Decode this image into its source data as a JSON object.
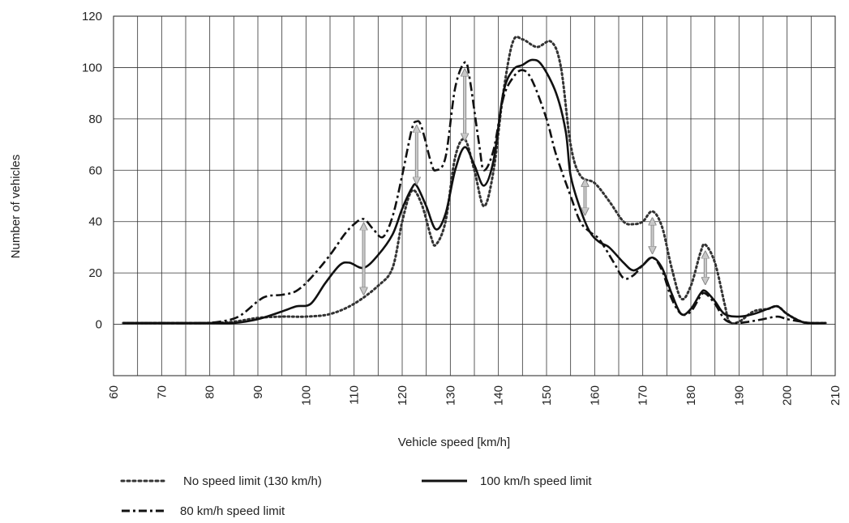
{
  "chart_data": {
    "type": "line",
    "xlabel": "Vehicle speed [km/h]",
    "ylabel": "Number of vehicles",
    "xlim": [
      60,
      210
    ],
    "ylim": [
      -20,
      120
    ],
    "x_ticks": [
      60,
      70,
      80,
      90,
      100,
      110,
      120,
      130,
      140,
      150,
      160,
      170,
      180,
      190,
      200,
      210
    ],
    "y_ticks": [
      0,
      20,
      40,
      60,
      80,
      100,
      120
    ],
    "grid": true,
    "legend_position": "bottom",
    "series": [
      {
        "name": "No speed limit (130 km/h)",
        "style": "dotted",
        "color": "#333333",
        "points": [
          [
            62,
            0.5
          ],
          [
            70,
            0.5
          ],
          [
            80,
            0.5
          ],
          [
            85,
            1
          ],
          [
            90,
            2.5
          ],
          [
            95,
            3
          ],
          [
            100,
            3
          ],
          [
            105,
            4
          ],
          [
            110,
            8
          ],
          [
            115,
            15
          ],
          [
            118,
            22
          ],
          [
            120,
            40
          ],
          [
            122,
            52
          ],
          [
            124,
            47
          ],
          [
            126,
            34
          ],
          [
            127,
            31
          ],
          [
            129,
            40
          ],
          [
            131,
            65
          ],
          [
            133,
            72
          ],
          [
            135,
            60
          ],
          [
            137,
            46
          ],
          [
            139,
            60
          ],
          [
            141,
            90
          ],
          [
            143,
            110
          ],
          [
            145,
            111
          ],
          [
            148,
            108
          ],
          [
            151,
            110
          ],
          [
            153,
            100
          ],
          [
            155,
            70
          ],
          [
            157,
            58
          ],
          [
            160,
            55
          ],
          [
            163,
            48
          ],
          [
            166,
            40
          ],
          [
            168,
            39
          ],
          [
            170,
            40
          ],
          [
            172,
            44
          ],
          [
            174,
            38
          ],
          [
            176,
            22
          ],
          [
            178,
            10
          ],
          [
            180,
            15
          ],
          [
            182,
            28
          ],
          [
            183,
            31
          ],
          [
            185,
            24
          ],
          [
            187,
            8
          ],
          [
            188,
            1
          ],
          [
            190,
            1
          ],
          [
            193,
            5
          ],
          [
            196,
            6
          ],
          [
            198,
            7
          ],
          [
            200,
            4
          ],
          [
            203,
            1
          ],
          [
            205,
            0.5
          ],
          [
            208,
            0.5
          ]
        ]
      },
      {
        "name": "100 km/h speed limit",
        "style": "solid",
        "color": "#111111",
        "points": [
          [
            62,
            0.5
          ],
          [
            70,
            0.5
          ],
          [
            80,
            0.5
          ],
          [
            85,
            0.5
          ],
          [
            90,
            2
          ],
          [
            95,
            5
          ],
          [
            98,
            7
          ],
          [
            101,
            8
          ],
          [
            104,
            16
          ],
          [
            107,
            23
          ],
          [
            109,
            24
          ],
          [
            112,
            22
          ],
          [
            115,
            27
          ],
          [
            118,
            35
          ],
          [
            120,
            45
          ],
          [
            122,
            53
          ],
          [
            123,
            54
          ],
          [
            125,
            46
          ],
          [
            127,
            37
          ],
          [
            129,
            43
          ],
          [
            131,
            60
          ],
          [
            133,
            69
          ],
          [
            135,
            62
          ],
          [
            137,
            54
          ],
          [
            139,
            64
          ],
          [
            141,
            90
          ],
          [
            143,
            99
          ],
          [
            145,
            101
          ],
          [
            147,
            103
          ],
          [
            149,
            101
          ],
          [
            152,
            90
          ],
          [
            154,
            75
          ],
          [
            155,
            58
          ],
          [
            157,
            45
          ],
          [
            159,
            36
          ],
          [
            161,
            32
          ],
          [
            163,
            30
          ],
          [
            166,
            24
          ],
          [
            168,
            21
          ],
          [
            170,
            23
          ],
          [
            172,
            26
          ],
          [
            174,
            22
          ],
          [
            176,
            12
          ],
          [
            178,
            4
          ],
          [
            180,
            6
          ],
          [
            182,
            12
          ],
          [
            183,
            13
          ],
          [
            185,
            9
          ],
          [
            187,
            4
          ],
          [
            190,
            3
          ],
          [
            193,
            4
          ],
          [
            196,
            6
          ],
          [
            198,
            7
          ],
          [
            200,
            4
          ],
          [
            203,
            1
          ],
          [
            205,
            0.5
          ],
          [
            208,
            0.5
          ]
        ]
      },
      {
        "name": "80 km/h speed limit",
        "style": "dash-dot",
        "color": "#111111",
        "points": [
          [
            62,
            0.5
          ],
          [
            70,
            0.5
          ],
          [
            78,
            0.5
          ],
          [
            82,
            1
          ],
          [
            86,
            3
          ],
          [
            90,
            9
          ],
          [
            92,
            11
          ],
          [
            95,
            11.5
          ],
          [
            98,
            13
          ],
          [
            101,
            18
          ],
          [
            105,
            27
          ],
          [
            108,
            35
          ],
          [
            110,
            39
          ],
          [
            112,
            41
          ],
          [
            114,
            37
          ],
          [
            116,
            34
          ],
          [
            118,
            42
          ],
          [
            120,
            58
          ],
          [
            122,
            76
          ],
          [
            123,
            79
          ],
          [
            124,
            77
          ],
          [
            126,
            63
          ],
          [
            127,
            60
          ],
          [
            129,
            65
          ],
          [
            131,
            92
          ],
          [
            133,
            102
          ],
          [
            134,
            96
          ],
          [
            136,
            70
          ],
          [
            137,
            60
          ],
          [
            139,
            68
          ],
          [
            141,
            88
          ],
          [
            143,
            96
          ],
          [
            145,
            99
          ],
          [
            147,
            95
          ],
          [
            150,
            80
          ],
          [
            152,
            66
          ],
          [
            155,
            50
          ],
          [
            157,
            40
          ],
          [
            159,
            36
          ],
          [
            161,
            33
          ],
          [
            164,
            24
          ],
          [
            166,
            18
          ],
          [
            168,
            19
          ],
          [
            170,
            23
          ],
          [
            172,
            26
          ],
          [
            174,
            21
          ],
          [
            176,
            10
          ],
          [
            178,
            4
          ],
          [
            180,
            5
          ],
          [
            182,
            11
          ],
          [
            183,
            12
          ],
          [
            185,
            8
          ],
          [
            187,
            2
          ],
          [
            189,
            0.5
          ],
          [
            192,
            1
          ],
          [
            195,
            2
          ],
          [
            198,
            3
          ],
          [
            200,
            2
          ],
          [
            203,
            1
          ],
          [
            205,
            0.5
          ],
          [
            208,
            0.5
          ]
        ]
      }
    ],
    "annotations": [
      {
        "type": "double-arrow",
        "x": 112,
        "y_from": 11,
        "y_to": 40
      },
      {
        "type": "double-arrow",
        "x": 123,
        "y_from": 54,
        "y_to": 78
      },
      {
        "type": "double-arrow",
        "x": 133,
        "y_from": 71,
        "y_to": 100
      },
      {
        "type": "double-arrow",
        "x": 158,
        "y_from": 42,
        "y_to": 57
      },
      {
        "type": "double-arrow",
        "x": 172,
        "y_from": 27,
        "y_to": 42
      },
      {
        "type": "double-arrow",
        "x": 183,
        "y_from": 15,
        "y_to": 29
      }
    ]
  }
}
